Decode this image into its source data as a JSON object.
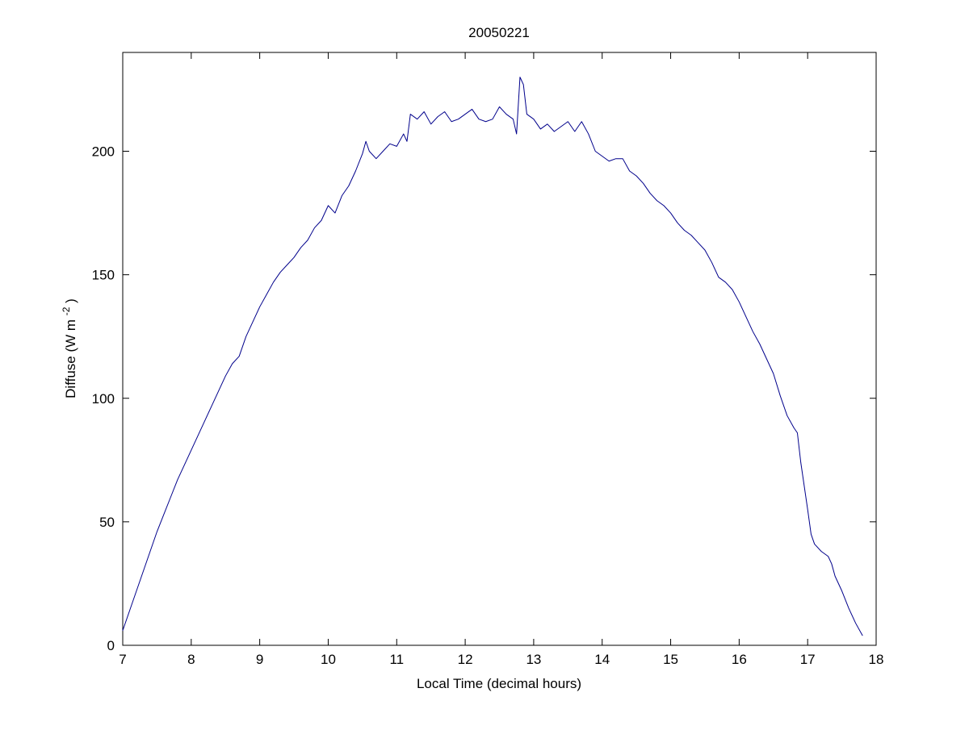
{
  "chart_data": {
    "type": "line",
    "title": "20050221",
    "xlabel": "Local Time (decimal hours)",
    "ylabel": "Diffuse (W m⁻²)",
    "ylabel_parts": {
      "prefix": "Diffuse (W m",
      "superscript": "-2",
      "suffix": ")"
    },
    "xlim": [
      7,
      18
    ],
    "ylim": [
      0,
      240
    ],
    "xticks": [
      7,
      8,
      9,
      10,
      11,
      12,
      13,
      14,
      15,
      16,
      17,
      18
    ],
    "yticks": [
      0,
      50,
      100,
      150,
      200
    ],
    "grid": false,
    "legend_position": "none",
    "line_color": "#00008B",
    "axis_color": "#000000",
    "background_color": "#ffffff",
    "series": [
      {
        "name": "Diffuse",
        "x": [
          7.0,
          7.1,
          7.2,
          7.3,
          7.4,
          7.5,
          7.6,
          7.7,
          7.8,
          7.9,
          8.0,
          8.1,
          8.2,
          8.3,
          8.4,
          8.5,
          8.6,
          8.7,
          8.8,
          8.9,
          9.0,
          9.1,
          9.2,
          9.3,
          9.4,
          9.5,
          9.6,
          9.7,
          9.8,
          9.9,
          10.0,
          10.1,
          10.2,
          10.3,
          10.4,
          10.5,
          10.55,
          10.6,
          10.7,
          10.8,
          10.9,
          11.0,
          11.1,
          11.15,
          11.2,
          11.3,
          11.4,
          11.5,
          11.6,
          11.7,
          11.8,
          11.9,
          12.0,
          12.1,
          12.2,
          12.3,
          12.4,
          12.5,
          12.6,
          12.7,
          12.75,
          12.8,
          12.85,
          12.9,
          13.0,
          13.1,
          13.2,
          13.3,
          13.4,
          13.5,
          13.6,
          13.7,
          13.8,
          13.9,
          14.0,
          14.1,
          14.2,
          14.3,
          14.4,
          14.5,
          14.6,
          14.7,
          14.8,
          14.9,
          15.0,
          15.1,
          15.2,
          15.3,
          15.4,
          15.5,
          15.6,
          15.7,
          15.8,
          15.9,
          16.0,
          16.1,
          16.2,
          16.3,
          16.4,
          16.5,
          16.6,
          16.7,
          16.8,
          16.85,
          16.9,
          17.0,
          17.05,
          17.1,
          17.2,
          17.3,
          17.35,
          17.4,
          17.5,
          17.6,
          17.7,
          17.8
        ],
        "y": [
          6,
          14,
          22,
          30,
          38,
          46,
          53,
          60,
          67,
          73,
          79,
          85,
          91,
          97,
          103,
          109,
          114,
          117,
          125,
          131,
          137,
          142,
          147,
          151,
          154,
          157,
          161,
          164,
          169,
          172,
          178,
          175,
          182,
          186,
          192,
          199,
          204,
          200,
          197,
          200,
          203,
          202,
          207,
          204,
          215,
          213,
          216,
          211,
          214,
          216,
          212,
          213,
          215,
          217,
          213,
          212,
          213,
          218,
          215,
          213,
          207,
          230,
          227,
          215,
          213,
          209,
          211,
          208,
          210,
          212,
          208,
          212,
          207,
          200,
          198,
          196,
          197,
          197,
          192,
          190,
          187,
          183,
          180,
          178,
          175,
          171,
          168,
          166,
          163,
          160,
          155,
          149,
          147,
          144,
          139,
          133,
          127,
          122,
          116,
          110,
          101,
          93,
          88,
          86,
          74,
          55,
          45,
          41,
          38,
          36,
          33,
          28,
          22,
          15,
          9,
          4
        ]
      }
    ]
  }
}
